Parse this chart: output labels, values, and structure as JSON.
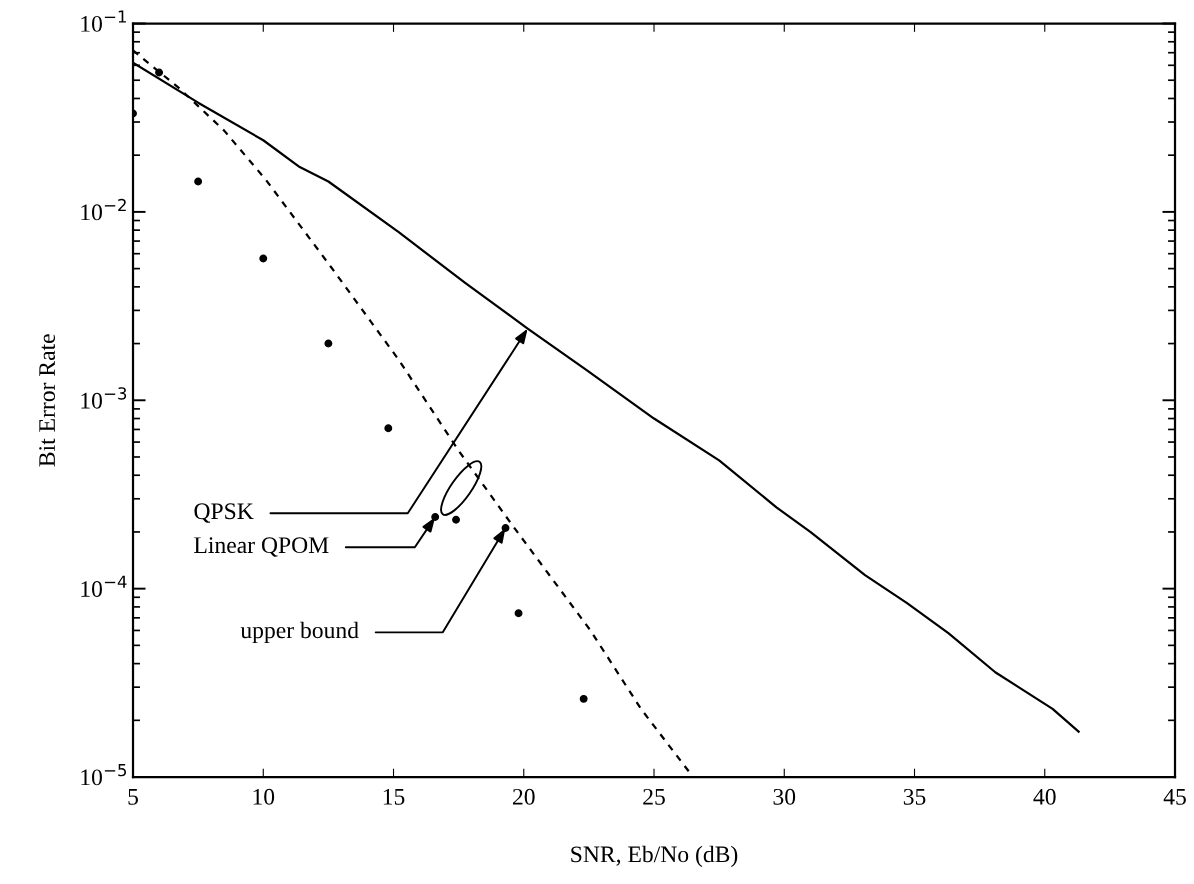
{
  "chart_data": {
    "type": "line",
    "xlabel": "SNR, Eb/No (dB)",
    "ylabel": "Bit Error Rate",
    "log": "y",
    "xlim": [
      5,
      45
    ],
    "xticks": [
      5,
      10,
      15,
      20,
      25,
      30,
      35,
      40,
      45
    ],
    "ylim": [
      1e-05,
      0.1
    ],
    "yticks": [
      {
        "value": 1e-05,
        "label": "10$^{−5}$"
      },
      {
        "value": 0.0001,
        "label": "10$^{−4}$"
      },
      {
        "value": 0.001,
        "label": "10$^{−3}$"
      },
      {
        "value": 0.01,
        "label": "10$^{−2}$"
      },
      {
        "value": 0.1,
        "label": "10$^{−1}$"
      }
    ],
    "grid": false,
    "legend": false,
    "series": [
      {
        "color": "#000000",
        "line_style": "solid",
        "marker": "none",
        "x": [
          5,
          7.5,
          10,
          11.4,
          12.5,
          15.2,
          17.75,
          20.15,
          22.4,
          25,
          27.5,
          29.7,
          31,
          33.1,
          34.7,
          36.3,
          38.1,
          40.3,
          41.3
        ],
        "values": [
          0.062,
          0.038,
          0.024,
          0.0173,
          0.0145,
          0.0078,
          0.0042,
          0.0024,
          0.00145,
          0.0008,
          0.00048,
          0.00027,
          0.0002,
          0.000118,
          8.4e-05,
          5.8e-05,
          3.6e-05,
          2.3e-05,
          1.74e-05
        ]
      },
      {
        "color": "#000000",
        "line_style": "dashed",
        "marker": "none",
        "x": [
          5,
          6.8,
          8.5,
          10.1,
          12.6,
          15.2,
          17.5,
          19.5,
          22.56,
          24.5,
          26.5
        ],
        "values": [
          0.072,
          0.045,
          0.027,
          0.0148,
          0.0051,
          0.00164,
          0.00054,
          0.000223,
          6e-05,
          2.3e-05,
          1e-05
        ]
      },
      {
        "type": "scatter",
        "color": "#000000",
        "marker": "circle",
        "x": [
          5,
          6,
          7.5,
          10,
          12.5,
          14.8,
          16.6,
          17.4,
          19.3,
          19.8,
          22.3
        ],
        "values": [
          0.0333,
          0.055,
          0.0145,
          0.00566,
          0.002,
          0.00071,
          0.00024,
          0.000232,
          0.00021,
          7.4e-05,
          2.6e-05
        ]
      }
    ],
    "annotations": [
      {
        "text": "QPSK",
        "x": 20.15,
        "y": 0.0024
      },
      {
        "text": "Linear QPOM",
        "x": 16.6,
        "y": 0.00024
      },
      {
        "text": "upper bound",
        "x": 19.3,
        "y": 0.00021
      }
    ]
  }
}
